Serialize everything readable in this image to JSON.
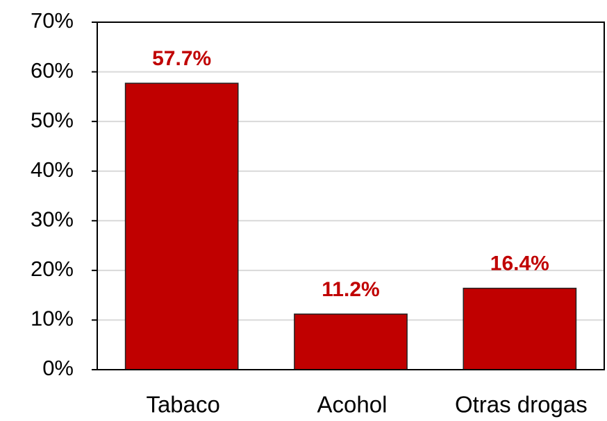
{
  "chart_data": {
    "type": "bar",
    "categories": [
      "Tabaco",
      "Acohol",
      "Otras drogas"
    ],
    "values": [
      57.7,
      11.2,
      16.4
    ],
    "value_labels": [
      "57.7%",
      "11.2%",
      "16.4%"
    ],
    "color": "#c00000",
    "label_color": "#c00000",
    "ylim": [
      0,
      70
    ],
    "yticks": [
      {
        "value": 0,
        "label": "0%"
      },
      {
        "value": 10,
        "label": "10%"
      },
      {
        "value": 20,
        "label": "20%"
      },
      {
        "value": 30,
        "label": "30%"
      },
      {
        "value": 40,
        "label": "40%"
      },
      {
        "value": 50,
        "label": "50%"
      },
      {
        "value": 60,
        "label": "60%"
      },
      {
        "value": 70,
        "label": "70%"
      }
    ],
    "grid": true
  }
}
